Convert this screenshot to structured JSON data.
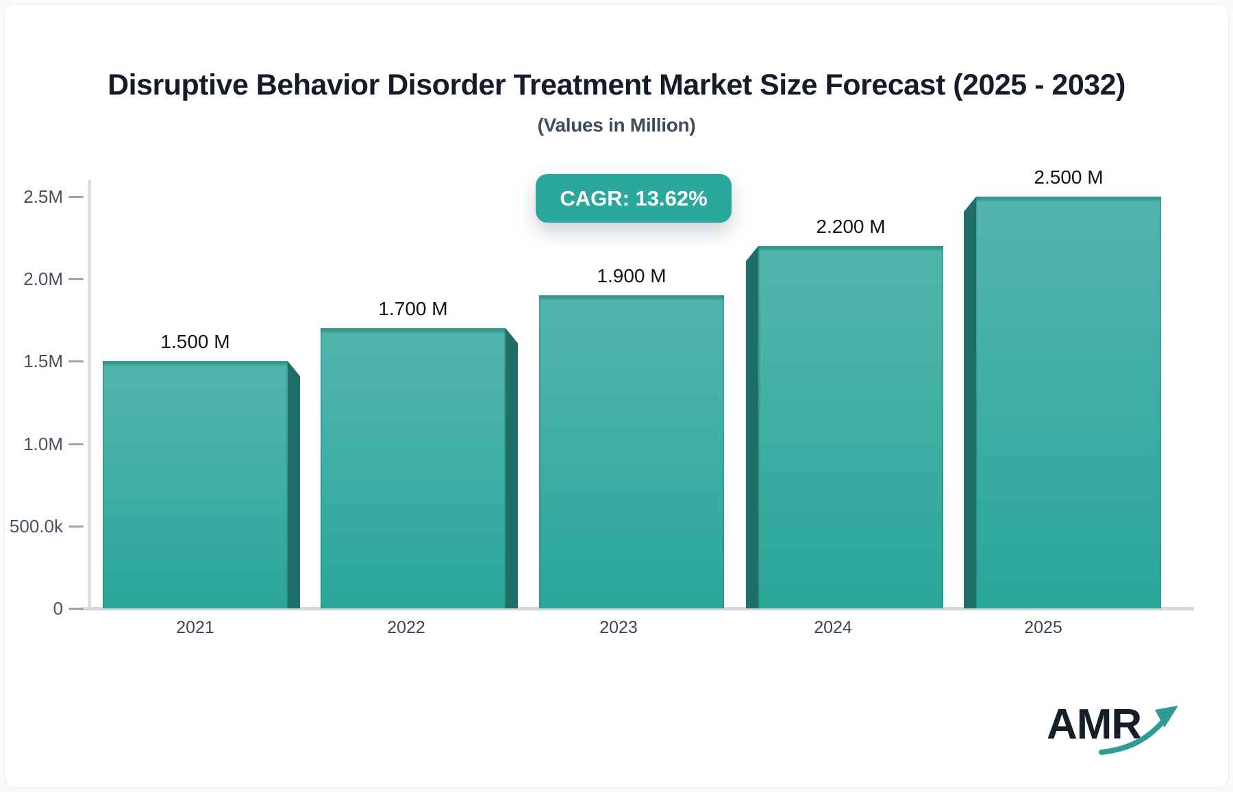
{
  "header": {
    "title": "Disruptive Behavior Disorder Treatment Market Size Forecast (2025 - 2032)",
    "subtitle": "(Values in Million)"
  },
  "cagr_badge": {
    "label": "CAGR: 13.62%",
    "bg_color": "#2aa89c",
    "text_color": "#ffffff"
  },
  "chart_data": {
    "type": "bar",
    "title": "Disruptive Behavior Disorder Treatment Market Size Forecast (2025 - 2032)",
    "subtitle": "(Values in Million)",
    "unit": "Million",
    "categories": [
      "2021",
      "2022",
      "2023",
      "2024",
      "2025"
    ],
    "values": [
      1.5,
      1.7,
      1.9,
      2.2,
      2.5
    ],
    "bar_labels": [
      "1.500 M",
      "1.700 M",
      "1.900 M",
      "2.200 M",
      "2.500 M"
    ],
    "yticks": [
      {
        "value": 2.5,
        "label": "2.5M"
      },
      {
        "value": 2.0,
        "label": "2.0M"
      },
      {
        "value": 1.5,
        "label": "1.5M"
      },
      {
        "value": 1.0,
        "label": "1.0M"
      },
      {
        "value": 0.5,
        "label": "500.0k"
      },
      {
        "value": 0.0,
        "label": "0"
      }
    ],
    "ylim": [
      0,
      2.5
    ],
    "xlabel": "",
    "ylabel": "",
    "grid": false,
    "legend": false,
    "cagr": "13.62%",
    "bar_color_top": "#52b5ac",
    "bar_color_bottom": "#2aa79a",
    "bar_side_color": "#1f6f68",
    "axis_color": "#d9dce1"
  },
  "logo": {
    "text": "AMR",
    "icon": "growth-arrow-icon",
    "text_color": "#151f29",
    "arrow_color": "#2f9b92"
  }
}
